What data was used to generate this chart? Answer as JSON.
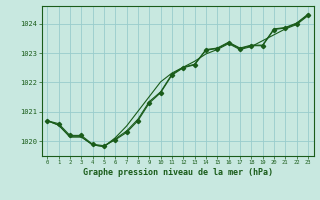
{
  "title": "Graphe pression niveau de la mer (hPa)",
  "bg_color": "#c8e8e0",
  "plot_bg_color": "#c8e8e0",
  "grid_color": "#99cccc",
  "line_color": "#1a5c1a",
  "spine_color": "#1a5c1a",
  "xlim": [
    -0.5,
    23.5
  ],
  "ylim": [
    1019.5,
    1024.6
  ],
  "yticks": [
    1020,
    1021,
    1022,
    1023,
    1024
  ],
  "xtick_labels": [
    "0",
    "1",
    "2",
    "3",
    "4",
    "5",
    "6",
    "7",
    "8",
    "9",
    "10",
    "11",
    "12",
    "13",
    "14",
    "15",
    "16",
    "17",
    "18",
    "19",
    "20",
    "21",
    "22",
    "23"
  ],
  "series1_x": [
    0,
    1,
    2,
    3,
    4,
    5,
    6,
    7,
    8,
    9,
    10,
    11,
    12,
    13,
    14,
    15,
    16,
    17,
    18,
    19,
    20,
    21,
    22,
    23
  ],
  "series1_y": [
    1020.7,
    1020.6,
    1020.2,
    1020.2,
    1019.9,
    1019.85,
    1020.05,
    1020.3,
    1020.7,
    1021.3,
    1021.65,
    1022.25,
    1022.5,
    1022.6,
    1023.1,
    1023.15,
    1023.35,
    1023.15,
    1023.25,
    1023.25,
    1023.8,
    1023.85,
    1024.0,
    1024.3
  ],
  "series2_x": [
    0,
    1,
    2,
    3,
    4,
    5,
    6,
    7,
    8,
    9,
    10,
    11,
    12,
    13,
    14,
    15,
    16,
    17,
    18,
    19,
    20,
    21,
    22,
    23
  ],
  "series2_y": [
    1020.7,
    1020.55,
    1020.15,
    1020.15,
    1019.88,
    1019.82,
    1020.12,
    1020.52,
    1021.02,
    1021.52,
    1022.02,
    1022.32,
    1022.52,
    1022.72,
    1022.97,
    1023.12,
    1023.32,
    1023.12,
    1023.22,
    1023.42,
    1023.62,
    1023.82,
    1023.97,
    1024.27
  ],
  "series3_x": [
    0,
    1,
    2,
    3,
    4,
    5,
    6,
    7,
    8,
    9,
    10,
    11,
    12,
    13,
    14,
    15,
    16,
    17,
    18,
    19,
    20,
    21,
    22,
    23
  ],
  "series3_y": [
    1020.7,
    1020.55,
    1020.15,
    1020.15,
    1019.88,
    1019.82,
    1020.08,
    1020.35,
    1020.75,
    1021.35,
    1021.68,
    1022.28,
    1022.52,
    1022.62,
    1023.12,
    1023.17,
    1023.37,
    1023.17,
    1023.27,
    1023.27,
    1023.82,
    1023.87,
    1024.02,
    1024.32
  ]
}
